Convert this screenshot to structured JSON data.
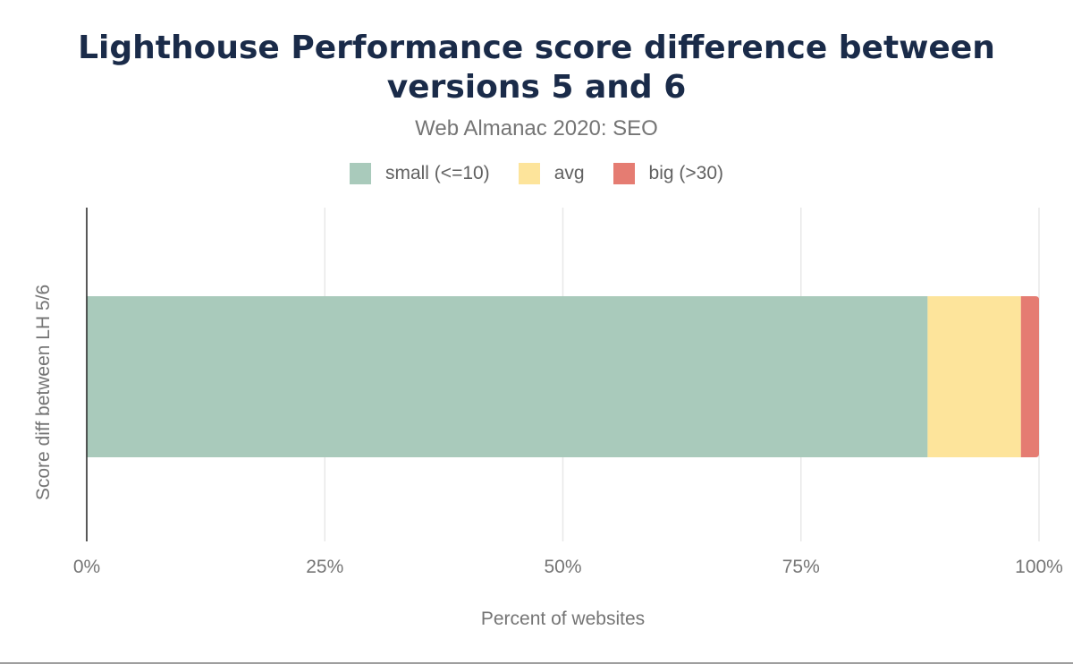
{
  "chart_data": {
    "type": "bar",
    "orientation": "horizontal",
    "stacked": true,
    "title": "Lighthouse Performance score difference between versions 5 and 6",
    "subtitle": "Web Almanac 2020: SEO",
    "xlabel": "Percent of websites",
    "ylabel": "Score diff between LH 5/6",
    "xlim": [
      0,
      100
    ],
    "x_ticks": [
      "0%",
      "25%",
      "50%",
      "75%",
      "100%"
    ],
    "x_tick_values": [
      0,
      25,
      50,
      75,
      100
    ],
    "grid": true,
    "legend_position": "top-center",
    "categories": [
      ""
    ],
    "series": [
      {
        "name": "small (<=10)",
        "color": "#a9cabb",
        "values": [
          88.3
        ]
      },
      {
        "name": "avg",
        "color": "#fde49b",
        "values": [
          9.8
        ]
      },
      {
        "name": "big (>30)",
        "color": "#e57c72",
        "values": [
          1.9
        ]
      }
    ]
  }
}
